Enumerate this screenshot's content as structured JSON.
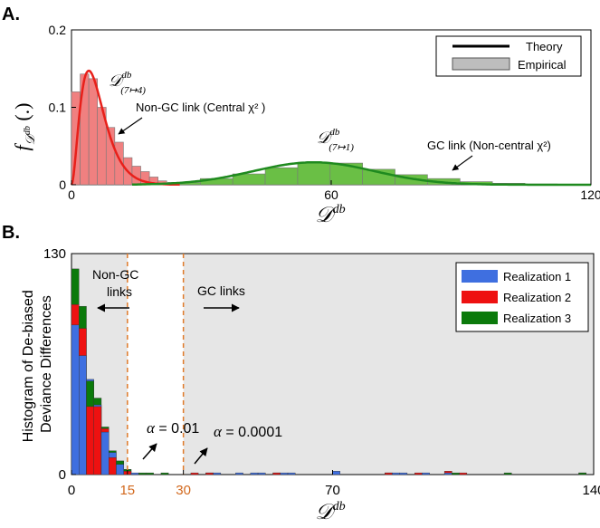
{
  "panel_labels": {
    "a": "A.",
    "b": "B."
  },
  "chart_data": [
    {
      "type": "bar",
      "panel": "A",
      "ylabel": "f_{D^{db}}(.)",
      "xlabel": "D^{db}",
      "xlim": [
        0,
        120
      ],
      "ylim": [
        0,
        0.2
      ],
      "xticks": [
        0,
        60,
        120
      ],
      "yticks": [
        0,
        0.1,
        0.2
      ],
      "ytick_labels": [
        "0",
        "0.1",
        "0.2"
      ],
      "legend": {
        "position": "top-right",
        "entries": [
          "Theory",
          "Empirical"
        ]
      },
      "colors": {
        "nongc": "#f08080",
        "nongc_line": "#e8201a",
        "gc": "#6abf45",
        "gc_line": "#1f8a1f",
        "legend_patch": "#bdbdbd"
      },
      "series": [
        {
          "name": "Non-GC link (Central χ²)",
          "bin_width": 2,
          "x": [
            1,
            3,
            5,
            7,
            9,
            11,
            13,
            15,
            17,
            19,
            21,
            23
          ],
          "values": [
            0.12,
            0.143,
            0.137,
            0.1,
            0.074,
            0.055,
            0.035,
            0.024,
            0.017,
            0.01,
            0.005,
            0.002
          ],
          "theory_dof": 6
        },
        {
          "name": "GC link (Non-central χ²)",
          "bin_width": 7.5,
          "x": [
            26,
            33.5,
            41,
            48.5,
            56,
            63.5,
            71,
            78.5,
            86,
            93.5,
            101,
            108.5
          ],
          "values": [
            0.003,
            0.008,
            0.014,
            0.022,
            0.029,
            0.028,
            0.02,
            0.013,
            0.008,
            0.004,
            0.002,
            0.001
          ],
          "theory_mean": 56,
          "theory_sd": 14
        }
      ],
      "annotations": [
        {
          "text_main": "D",
          "text_sup": "db",
          "text_sub": "(7↦4)",
          "target": [
            5,
            0.135
          ]
        },
        {
          "text": "Non-GC link (Central χ² )",
          "target": [
            12,
            0.055
          ]
        },
        {
          "text_main": "D",
          "text_sup": "db",
          "text_sub": "(7↦1)",
          "target": [
            56,
            0.03
          ]
        },
        {
          "text": "GC link (Non-central χ²)",
          "target": [
            88,
            0.013
          ]
        }
      ]
    },
    {
      "type": "bar",
      "panel": "B",
      "ylabel": "Histogram of De-biased Deviance Differences",
      "xlabel": "D^{db}",
      "xlim": [
        0,
        140
      ],
      "ylim": [
        0,
        130
      ],
      "xticks": [
        0,
        15,
        30,
        70,
        140
      ],
      "xtick_colors": [
        "#000000",
        "#d2691e",
        "#d2691e",
        "#000000",
        "#000000"
      ],
      "yticks": [
        0,
        130
      ],
      "thresholds": [
        {
          "x": 15,
          "label": "α = 0.01"
        },
        {
          "x": 30,
          "label": "α = 0.0001"
        }
      ],
      "region_labels": {
        "left": "Non-GC links",
        "right": "GC links"
      },
      "legend": {
        "position": "top-right",
        "entries": [
          "Realization 1",
          "Realization 2",
          "Realization 3"
        ]
      },
      "bin_width": 2,
      "bins": [
        1,
        3,
        5,
        7,
        9,
        11,
        13,
        15,
        17,
        19,
        21,
        23,
        25,
        27,
        29,
        31,
        33,
        35,
        37,
        39,
        41,
        43,
        45,
        47,
        49,
        51,
        53,
        55,
        57,
        59,
        61,
        63,
        65,
        67,
        69,
        71,
        73,
        75,
        77,
        79,
        81,
        83,
        85,
        87,
        89,
        91,
        93,
        95,
        97,
        99,
        101,
        103,
        105,
        107,
        109,
        111,
        113,
        115,
        117,
        119,
        121,
        123,
        125,
        127,
        129,
        131,
        133,
        135,
        137,
        139
      ],
      "series": [
        {
          "name": "Realization 1",
          "color": "#3f6fe0",
          "values": [
            88,
            70,
            56,
            41,
            25,
            13,
            6,
            3,
            1,
            0,
            0,
            0,
            0,
            0,
            0,
            0,
            0,
            0,
            1,
            1,
            0,
            0,
            1,
            0,
            1,
            1,
            0,
            1,
            1,
            1,
            0,
            0,
            0,
            0,
            0,
            2,
            0,
            0,
            0,
            0,
            0,
            0,
            1,
            1,
            1,
            0,
            0,
            1,
            0,
            0,
            1,
            0,
            0,
            0,
            0,
            0,
            0,
            0,
            0,
            0,
            0,
            0,
            0,
            0,
            0,
            0,
            0,
            0,
            0,
            0
          ]
        },
        {
          "name": "Realization 2",
          "color": "#ee1111",
          "values": [
            100,
            86,
            40,
            40,
            27,
            10,
            8,
            2,
            0,
            0,
            0,
            0,
            0,
            0,
            0,
            0,
            1,
            0,
            1,
            0,
            0,
            0,
            0,
            0,
            0,
            0,
            0,
            1,
            0,
            0,
            0,
            0,
            0,
            0,
            0,
            0,
            0,
            0,
            0,
            0,
            0,
            0,
            1,
            0,
            0,
            0,
            1,
            0,
            0,
            0,
            2,
            0,
            1,
            0,
            0,
            0,
            0,
            0,
            0,
            0,
            0,
            0,
            0,
            0,
            0,
            0,
            0,
            0,
            1,
            0
          ]
        },
        {
          "name": "Realization 3",
          "color": "#0b7a0b",
          "values": [
            121,
            99,
            55,
            45,
            28,
            14,
            8,
            3,
            0,
            1,
            1,
            0,
            1,
            0,
            0,
            0,
            0,
            0,
            0,
            0,
            0,
            0,
            0,
            0,
            0,
            0,
            0,
            0,
            0,
            0,
            0,
            0,
            0,
            0,
            0,
            0,
            0,
            0,
            0,
            0,
            0,
            0,
            0,
            0,
            0,
            0,
            0,
            0,
            0,
            0,
            0,
            1,
            0,
            0,
            0,
            0,
            0,
            0,
            1,
            0,
            0,
            0,
            0,
            0,
            0,
            0,
            0,
            0,
            1,
            0
          ]
        }
      ]
    }
  ]
}
